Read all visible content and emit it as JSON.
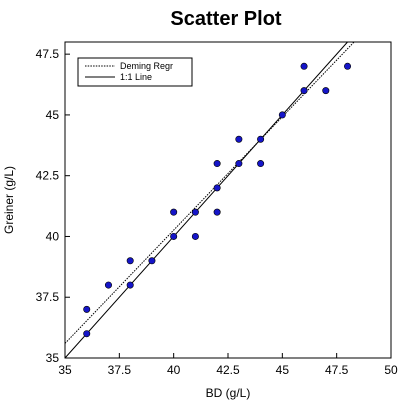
{
  "chart_data": {
    "type": "scatter",
    "title": "Scatter Plot",
    "xlabel": "BD (g/L)",
    "ylabel": "Greiner (g/L)",
    "xlim": [
      35,
      50
    ],
    "ylim": [
      35,
      48
    ],
    "x_ticks": [
      35,
      37.5,
      40,
      42.5,
      45,
      47.5,
      50
    ],
    "x_tick_labels": [
      "35",
      "37.5",
      "40",
      "42.5",
      "45",
      "47.5",
      "50"
    ],
    "y_ticks": [
      35,
      37.5,
      40,
      42.5,
      45,
      47.5
    ],
    "y_tick_labels": [
      "35",
      "37.5",
      "40",
      "42.5",
      "45",
      "47.5"
    ],
    "grid": false,
    "legend_position": "top-left",
    "points": {
      "color": "#1515c8",
      "x": [
        36,
        36,
        37,
        38,
        38,
        39,
        40,
        40,
        41,
        41,
        42,
        42,
        42,
        43,
        43,
        44,
        44,
        45,
        46,
        46,
        47,
        48
      ],
      "y": [
        36,
        37,
        38,
        38,
        39,
        39,
        40,
        41,
        40,
        41,
        41,
        42,
        43,
        43,
        44,
        43,
        44,
        45,
        46,
        47,
        46,
        47
      ]
    },
    "lines": [
      {
        "name": "Deming Regr",
        "style": "dotted",
        "color": "#000000",
        "x": [
          35,
          48.3
        ],
        "y": [
          35.6,
          48
        ]
      },
      {
        "name": "1:1 Line",
        "style": "solid",
        "color": "#000000",
        "x": [
          35,
          48
        ],
        "y": [
          35,
          48
        ]
      }
    ]
  }
}
